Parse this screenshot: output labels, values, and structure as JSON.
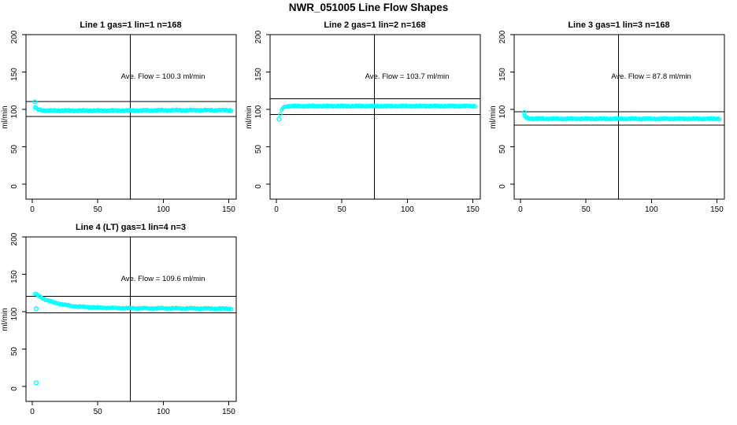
{
  "main_title": "NWR_051005  Line Flow Shapes",
  "colors": {
    "point": "#00FFFF",
    "line": "#000000",
    "background": "#FFFFFF",
    "text": "#000000"
  },
  "axes": {
    "x_ticks": [
      0,
      50,
      100,
      150
    ],
    "y_ticks": [
      0,
      50,
      100,
      150,
      200
    ],
    "y_label": "ml/min",
    "xlim": [
      -5,
      156
    ],
    "ylim": [
      -20,
      200
    ]
  },
  "chart_data": [
    {
      "type": "scatter",
      "title": "Line 1 gas=1 lin=1 n=168",
      "annotation": "Ave. Flow =  100.3  ml/min",
      "ave_flow_ml_min": 100.3,
      "n": 168,
      "vline_x": 75,
      "ref_lines": [
        110.3,
        90.3
      ],
      "lead_points": [
        [
          2,
          110
        ]
      ],
      "band_points": [
        [
          2,
          103
        ],
        [
          4,
          100
        ],
        [
          7,
          99
        ],
        [
          12,
          98.5
        ],
        [
          30,
          98.5
        ],
        [
          70,
          98.5
        ],
        [
          110,
          99
        ],
        [
          152,
          99
        ]
      ]
    },
    {
      "type": "scatter",
      "title": "Line 2 gas=1 lin=2 n=168",
      "annotation": "Ave. Flow =  103.7  ml/min",
      "ave_flow_ml_min": 103.7,
      "n": 168,
      "vline_x": 75,
      "ref_lines": [
        114.1,
        93.3
      ],
      "lead_points": [
        [
          2,
          87
        ]
      ],
      "band_points": [
        [
          3,
          93
        ],
        [
          4,
          99
        ],
        [
          5,
          102
        ],
        [
          7,
          104
        ],
        [
          12,
          104.5
        ],
        [
          60,
          104.5
        ],
        [
          110,
          104.5
        ],
        [
          152,
          104.5
        ]
      ]
    },
    {
      "type": "scatter",
      "title": "Line 3 gas=1 lin=3 n=168",
      "annotation": "Ave. Flow =  87.8  ml/min",
      "ave_flow_ml_min": 87.8,
      "n": 168,
      "vline_x": 75,
      "ref_lines": [
        96.6,
        79.0
      ],
      "lead_points": [
        [
          3,
          96
        ]
      ],
      "band_points": [
        [
          3,
          91
        ],
        [
          5,
          88.5
        ],
        [
          10,
          87.5
        ],
        [
          60,
          87.5
        ],
        [
          110,
          87.5
        ],
        [
          152,
          87.5
        ]
      ]
    },
    {
      "type": "scatter",
      "title": "Line 4 (LT) gas=1 lin=4 n=3",
      "annotation": "Ave. Flow =  109.6  ml/min",
      "ave_flow_ml_min": 109.6,
      "n": 3,
      "vline_x": 75,
      "ref_lines": [
        120.6,
        98.6
      ],
      "lead_points": [
        [
          3,
          104
        ],
        [
          3,
          5
        ]
      ],
      "band_points": [
        [
          2,
          124
        ],
        [
          4,
          122
        ],
        [
          6,
          120
        ],
        [
          9,
          117
        ],
        [
          12,
          115
        ],
        [
          16,
          112.5
        ],
        [
          20,
          111
        ],
        [
          25,
          109
        ],
        [
          30,
          107.5
        ],
        [
          38,
          106.5
        ],
        [
          48,
          105.5
        ],
        [
          60,
          105
        ],
        [
          80,
          104.5
        ],
        [
          110,
          104.5
        ],
        [
          152,
          104
        ]
      ]
    }
  ]
}
